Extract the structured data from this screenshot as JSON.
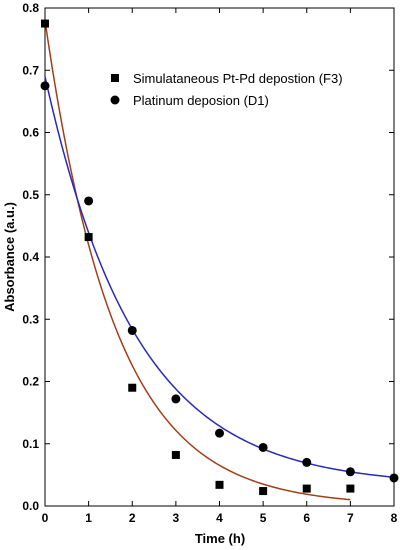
{
  "chart_data": {
    "type": "scatter",
    "xlabel": "Time (h)",
    "ylabel": "Absorbance (a.u.)",
    "xlim": [
      0,
      8
    ],
    "ylim": [
      0,
      0.8
    ],
    "x_ticks": [
      "0",
      "1",
      "2",
      "3",
      "4",
      "5",
      "6",
      "7",
      "8"
    ],
    "y_ticks": [
      "0.0",
      "0.1",
      "0.2",
      "0.3",
      "0.4",
      "0.5",
      "0.6",
      "0.7",
      "0.8"
    ],
    "grid": false,
    "legend_position": "top-right",
    "series": [
      {
        "name": "Simulataneous Pt-Pd depostion (F3)",
        "marker": "square",
        "color": "#000000",
        "x": [
          0,
          1,
          2,
          3,
          4,
          5,
          6,
          7
        ],
        "y": [
          0.775,
          0.432,
          0.19,
          0.082,
          0.034,
          0.024,
          0.028,
          0.028
        ],
        "fit": {
          "color": "#a0401a",
          "y0": 0.78,
          "k": 0.62,
          "c": 0.0,
          "x_end": 7
        }
      },
      {
        "name": "Platinum deposion (D1)",
        "marker": "circle",
        "color": "#000000",
        "x": [
          0,
          1,
          2,
          3,
          4,
          5,
          6,
          7,
          8
        ],
        "y": [
          0.675,
          0.49,
          0.282,
          0.172,
          0.117,
          0.094,
          0.07,
          0.055,
          0.045
        ],
        "fit": {
          "color": "#2a2ab8",
          "y0": 0.69,
          "k": 0.48,
          "c": 0.032,
          "x_end": 8
        }
      }
    ]
  }
}
